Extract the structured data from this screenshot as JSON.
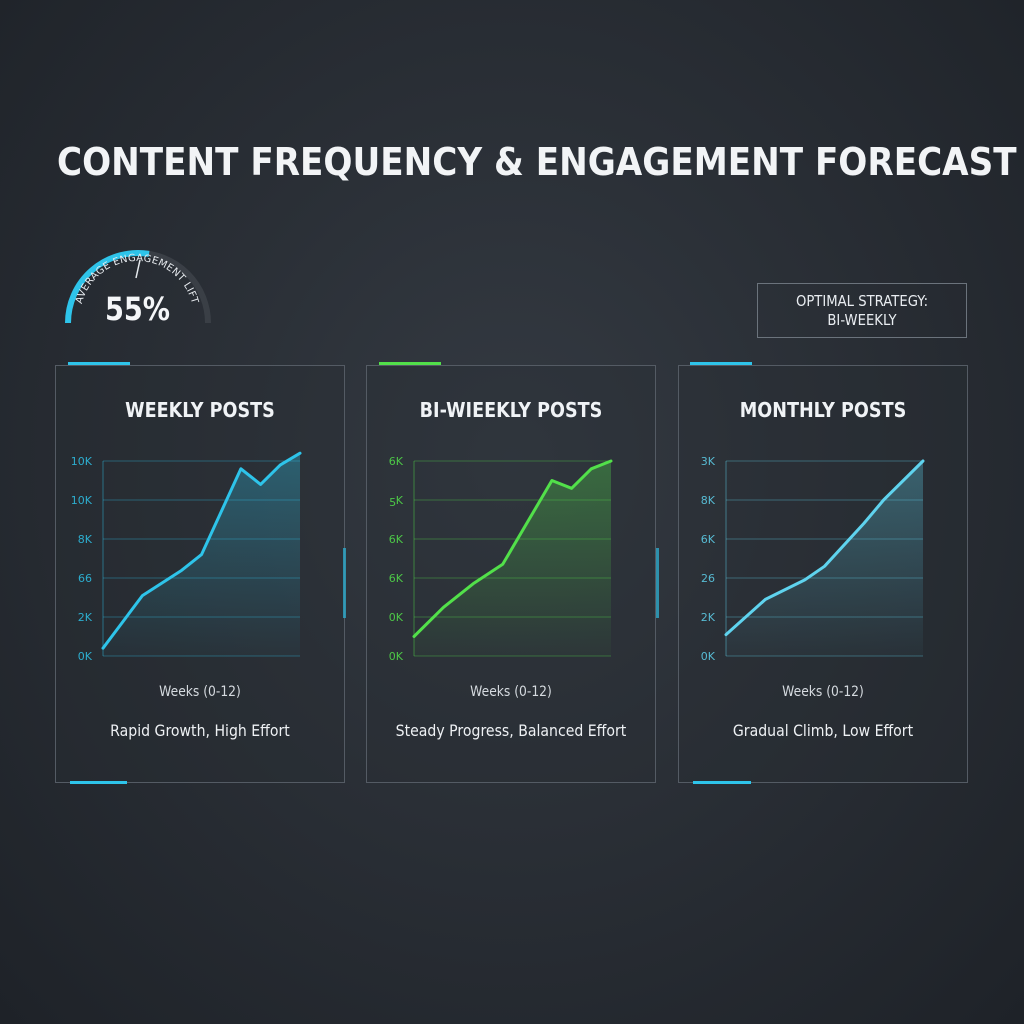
{
  "title": "CONTENT FREQUENCY & ENGAGEMENT FORECAST",
  "gauge": {
    "label": "AVERAGE ENGAGEMENT LIFT",
    "value_text": "55%",
    "value": 55
  },
  "strategy": {
    "line1": "OPTIMAL STRATEGY:",
    "line2": "BI-WEEKLY"
  },
  "colors": {
    "blue": "#2ec4ea",
    "green": "#52e04a",
    "light_blue": "#5fd3ee",
    "gauge_track": "#3a3f46"
  },
  "chart_data": [
    {
      "type": "area",
      "title": "WEEKLY POSTS",
      "xlabel": "Weeks (0-12)",
      "caption": "Rapid Growth, High Effort",
      "y_tick_labels": [
        "0K",
        "2K",
        "66",
        "8K",
        "10K",
        "10K"
      ],
      "ylim": [
        0,
        5
      ],
      "x": [
        0,
        2,
        4,
        5,
        7,
        8,
        9,
        10
      ],
      "values": [
        0.2,
        1.55,
        2.2,
        2.6,
        4.8,
        4.4,
        4.9,
        5.2
      ],
      "color": "#2ec4ea"
    },
    {
      "type": "area",
      "title": "BI-WIEEKLY POSTS",
      "xlabel": "Weeks (0-12)",
      "caption": "Steady Progress, Balanced Effort",
      "y_tick_labels": [
        "0K",
        "0K",
        "6K",
        "6K",
        "ƽK",
        "6K"
      ],
      "ylim": [
        0,
        5
      ],
      "x": [
        0,
        1.5,
        3,
        4.5,
        7,
        8,
        9,
        10
      ],
      "values": [
        0.5,
        1.25,
        1.85,
        2.35,
        4.5,
        4.3,
        4.8,
        5.0
      ],
      "color": "#52e04a"
    },
    {
      "type": "area",
      "title": "MONTHLY POSTS",
      "xlabel": "Weeks (0-12)",
      "caption": "Gradual Climb, Low Effort",
      "y_tick_labels": [
        "0K",
        "2K",
        "26",
        "6K",
        "8K",
        "3K"
      ],
      "ylim": [
        0,
        5
      ],
      "x": [
        0,
        2,
        4,
        5,
        7,
        8,
        9,
        10
      ],
      "values": [
        0.55,
        1.45,
        1.95,
        2.3,
        3.4,
        4.0,
        4.5,
        5.0
      ],
      "color": "#5fd3ee"
    }
  ]
}
